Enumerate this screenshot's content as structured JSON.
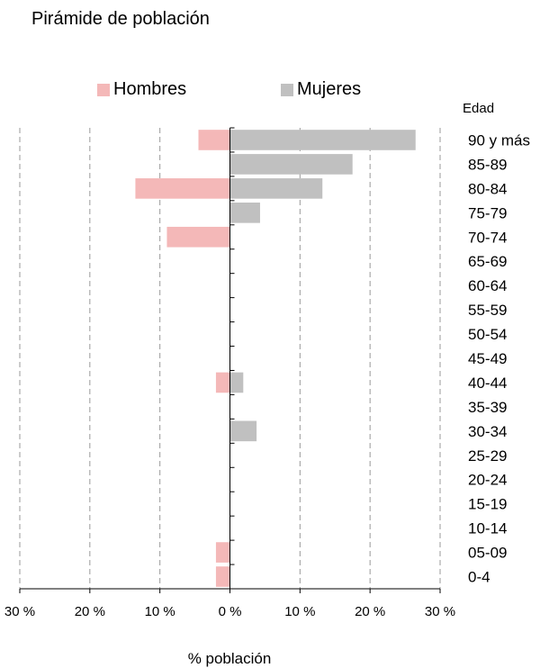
{
  "chart_data": {
    "type": "bar",
    "title": "Pirámide de población",
    "xlabel": "% población",
    "ylabel": "Edad",
    "xlim": [
      -30,
      30
    ],
    "xticks": [
      -30,
      -20,
      -10,
      0,
      10,
      20,
      30
    ],
    "xtick_labels": [
      "30 %",
      "20 %",
      "10 %",
      "0 %",
      "10 %",
      "20 %",
      "30 %"
    ],
    "grid": "vertical dashed",
    "legend_position": "top",
    "categories": [
      "90 y más",
      "85-89",
      "80-84",
      "75-79",
      "70-74",
      "65-69",
      "60-64",
      "55-59",
      "50-54",
      "45-49",
      "40-44",
      "35-39",
      "30-34",
      "25-29",
      "20-24",
      "15-19",
      "10-14",
      "05-09",
      "0-4"
    ],
    "series": [
      {
        "name": "Hombres",
        "color": "#f4b8b8",
        "values": [
          4.5,
          0,
          13.5,
          0,
          9,
          0,
          0,
          0,
          0,
          0,
          2,
          0,
          0,
          0,
          0,
          0,
          0,
          2,
          2
        ]
      },
      {
        "name": "Mujeres",
        "color": "#c0c0c0",
        "values": [
          26.5,
          17.5,
          13.2,
          4.3,
          0,
          0,
          0,
          0,
          0,
          0,
          1.9,
          0,
          3.8,
          0,
          0,
          0,
          0,
          0,
          0
        ]
      }
    ]
  }
}
